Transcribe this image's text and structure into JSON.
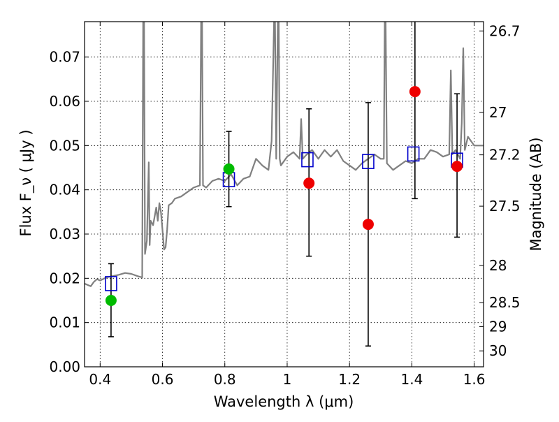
{
  "chart_data": {
    "type": "scatter",
    "xlabel": "Wavelength  λ (μm)",
    "ylabel": "Flux  F_ν ( μJy )",
    "y2label": "Magnitude (AB)",
    "xlim": [
      0.35,
      1.63
    ],
    "ylim": [
      0.0,
      0.078
    ],
    "grid": true,
    "x_ticks": [
      0.4,
      0.6,
      0.8,
      1.0,
      1.2,
      1.4,
      1.6
    ],
    "x_tick_labels": [
      "0.4",
      "0.6",
      "0.8",
      "1",
      "1.2",
      "1.4",
      "1.6"
    ],
    "y_ticks": [
      0.0,
      0.01,
      0.02,
      0.03,
      0.04,
      0.05,
      0.06,
      0.07
    ],
    "y_tick_labels": [
      "0.00",
      "0.01",
      "0.02",
      "0.03",
      "0.04",
      "0.05",
      "0.06",
      "0.07"
    ],
    "y2_ticks": [
      {
        "label": "26.7",
        "flux": 0.0759
      },
      {
        "label": "27",
        "flux": 0.0575
      },
      {
        "label": "27.2",
        "flux": 0.0479
      },
      {
        "label": "27.5",
        "flux": 0.0363
      },
      {
        "label": "28",
        "flux": 0.0229
      },
      {
        "label": "28.5",
        "flux": 0.0145
      },
      {
        "label": "29",
        "flux": 0.0091
      },
      {
        "label": "30",
        "flux": 0.0036
      }
    ],
    "series": [
      {
        "kind": "line",
        "color": "#808080",
        "x": [
          0.35,
          0.37,
          0.38,
          0.39,
          0.4,
          0.42,
          0.44,
          0.46,
          0.48,
          0.5,
          0.52,
          0.535,
          0.538,
          0.541,
          0.544,
          0.55,
          0.556,
          0.559,
          0.562,
          0.57,
          0.58,
          0.585,
          0.59,
          0.595,
          0.6,
          0.605,
          0.61,
          0.615,
          0.62,
          0.63,
          0.64,
          0.66,
          0.68,
          0.7,
          0.72,
          0.724,
          0.727,
          0.73,
          0.74,
          0.76,
          0.78,
          0.8,
          0.82,
          0.84,
          0.86,
          0.88,
          0.9,
          0.92,
          0.94,
          0.95,
          0.958,
          0.961,
          0.965,
          0.97,
          0.973,
          0.976,
          0.98,
          1.0,
          1.02,
          1.04,
          1.045,
          1.05,
          1.06,
          1.08,
          1.1,
          1.12,
          1.14,
          1.16,
          1.18,
          1.2,
          1.22,
          1.24,
          1.26,
          1.28,
          1.3,
          1.31,
          1.313,
          1.316,
          1.32,
          1.34,
          1.36,
          1.38,
          1.4,
          1.42,
          1.44,
          1.46,
          1.48,
          1.5,
          1.52,
          1.525,
          1.53,
          1.54,
          1.555,
          1.56,
          1.565,
          1.57,
          1.58,
          1.6,
          1.63
        ],
        "y": [
          0.0188,
          0.0182,
          0.0192,
          0.0198,
          0.0195,
          0.0202,
          0.0205,
          0.0208,
          0.0212,
          0.021,
          0.0205,
          0.0202,
          0.078,
          0.078,
          0.0255,
          0.0285,
          0.0462,
          0.0275,
          0.033,
          0.032,
          0.036,
          0.033,
          0.037,
          0.035,
          0.031,
          0.0265,
          0.027,
          0.031,
          0.0365,
          0.037,
          0.038,
          0.0385,
          0.0395,
          0.0405,
          0.041,
          0.078,
          0.078,
          0.041,
          0.0405,
          0.042,
          0.0425,
          0.042,
          0.0435,
          0.041,
          0.0425,
          0.043,
          0.047,
          0.0455,
          0.0445,
          0.051,
          0.078,
          0.078,
          0.047,
          0.078,
          0.078,
          0.047,
          0.0455,
          0.0475,
          0.0485,
          0.047,
          0.056,
          0.047,
          0.0478,
          0.049,
          0.047,
          0.049,
          0.0475,
          0.049,
          0.0465,
          0.0455,
          0.0445,
          0.046,
          0.047,
          0.048,
          0.047,
          0.047,
          0.078,
          0.078,
          0.046,
          0.0445,
          0.0455,
          0.0465,
          0.046,
          0.047,
          0.047,
          0.049,
          0.0485,
          0.0475,
          0.048,
          0.067,
          0.048,
          0.049,
          0.047,
          0.055,
          0.072,
          0.049,
          0.052,
          0.05,
          0.05
        ]
      },
      {
        "kind": "points",
        "marker": "open-square",
        "color": "#0000cc",
        "x": [
          0.435,
          0.813,
          1.065,
          1.26,
          1.405,
          1.545
        ],
        "y": [
          0.0188,
          0.0423,
          0.0468,
          0.0464,
          0.0481,
          0.0467
        ]
      },
      {
        "kind": "points",
        "marker": "filled-circle",
        "color": "#00bb00",
        "x": [
          0.435,
          0.813
        ],
        "y": [
          0.015,
          0.0447
        ]
      },
      {
        "kind": "points",
        "marker": "filled-circle",
        "color": "#ee0000",
        "x": [
          1.07,
          1.26,
          1.41,
          1.545
        ],
        "y": [
          0.0415,
          0.0322,
          0.0622,
          0.0453
        ]
      },
      {
        "kind": "errorbars",
        "color": "#000000",
        "x": [
          0.435,
          0.813,
          1.07,
          1.26,
          1.41,
          1.545
        ],
        "y_low": [
          0.0068,
          0.0362,
          0.025,
          0.0047,
          0.038,
          0.0293
        ],
        "y_high": [
          0.0233,
          0.0532,
          0.0583,
          0.0597,
          0.079,
          0.0617
        ]
      }
    ]
  }
}
